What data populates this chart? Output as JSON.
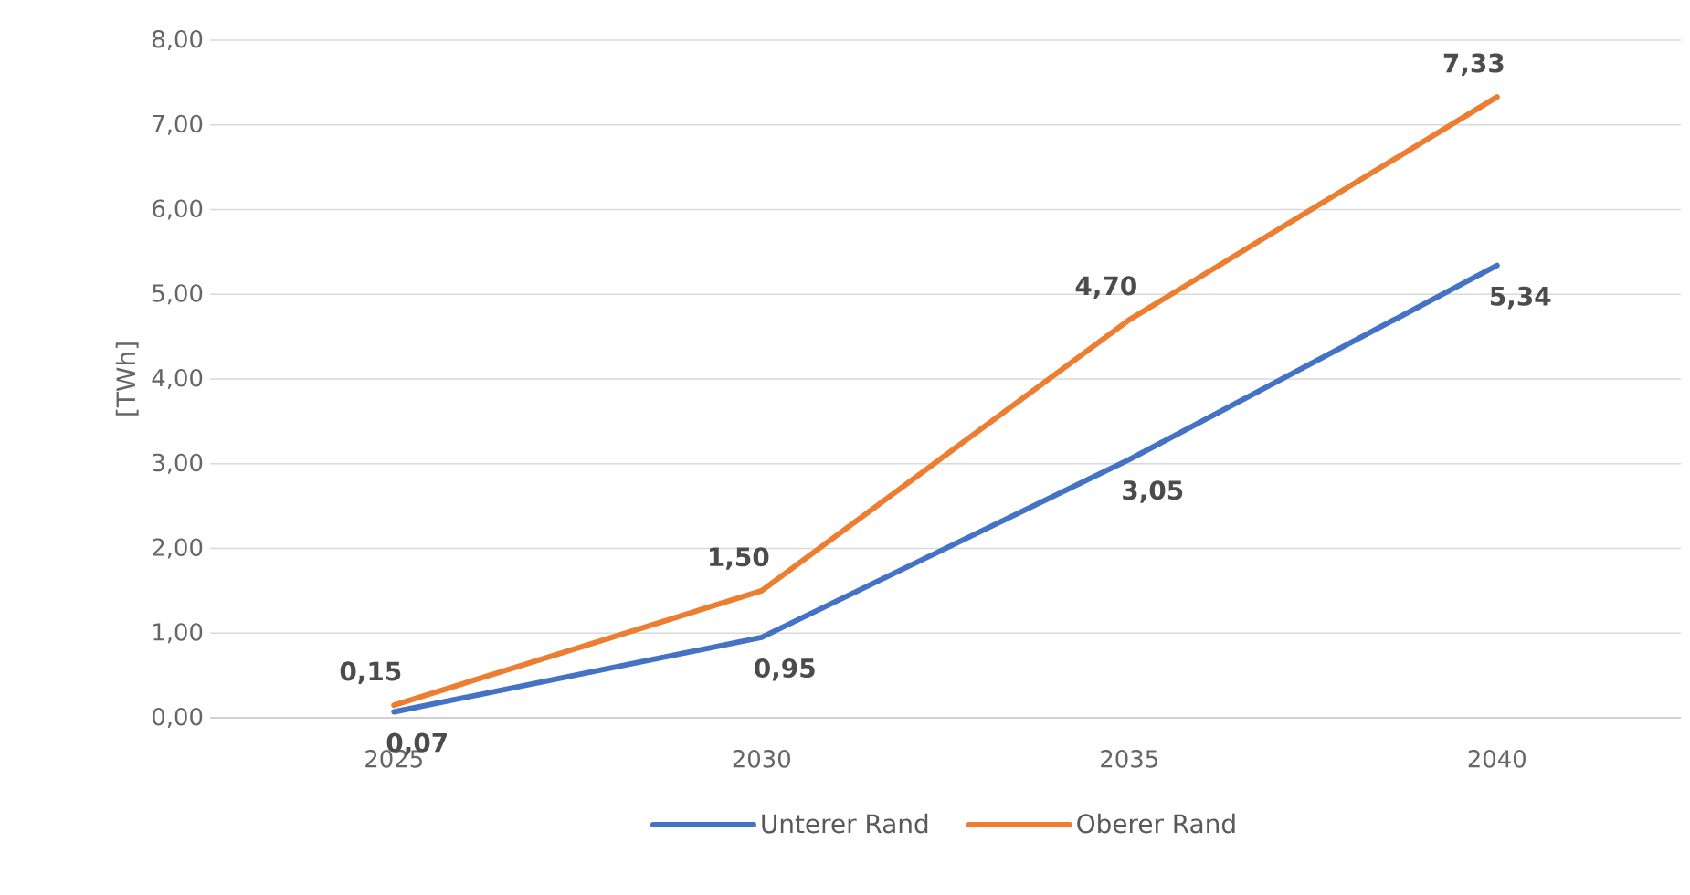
{
  "chart_data": {
    "type": "line",
    "ylabel": "[TWh]",
    "categories": [
      "2025",
      "2030",
      "2035",
      "2040"
    ],
    "series": [
      {
        "name": "Unterer Rand",
        "color": "#4472c4",
        "values": [
          0.07,
          0.95,
          3.05,
          5.34
        ],
        "value_labels": [
          "0,07",
          "0,95",
          "3,05",
          "5,34"
        ]
      },
      {
        "name": "Oberer Rand",
        "color": "#ed7d31",
        "values": [
          0.15,
          1.5,
          4.7,
          7.33
        ],
        "value_labels": [
          "0,15",
          "1,50",
          "4,70",
          "7,33"
        ]
      }
    ],
    "ylim": [
      0,
      8
    ],
    "yticks": [
      {
        "value": 0,
        "label": "0,00"
      },
      {
        "value": 1,
        "label": "1,00"
      },
      {
        "value": 2,
        "label": "2,00"
      },
      {
        "value": 3,
        "label": "3,00"
      },
      {
        "value": 4,
        "label": "4,00"
      },
      {
        "value": 5,
        "label": "5,00"
      },
      {
        "value": 6,
        "label": "6,00"
      },
      {
        "value": 7,
        "label": "7,00"
      },
      {
        "value": 8,
        "label": "8,00"
      }
    ],
    "grid": "y",
    "legend": "bottom",
    "marker": "none",
    "line_style": "solid"
  }
}
